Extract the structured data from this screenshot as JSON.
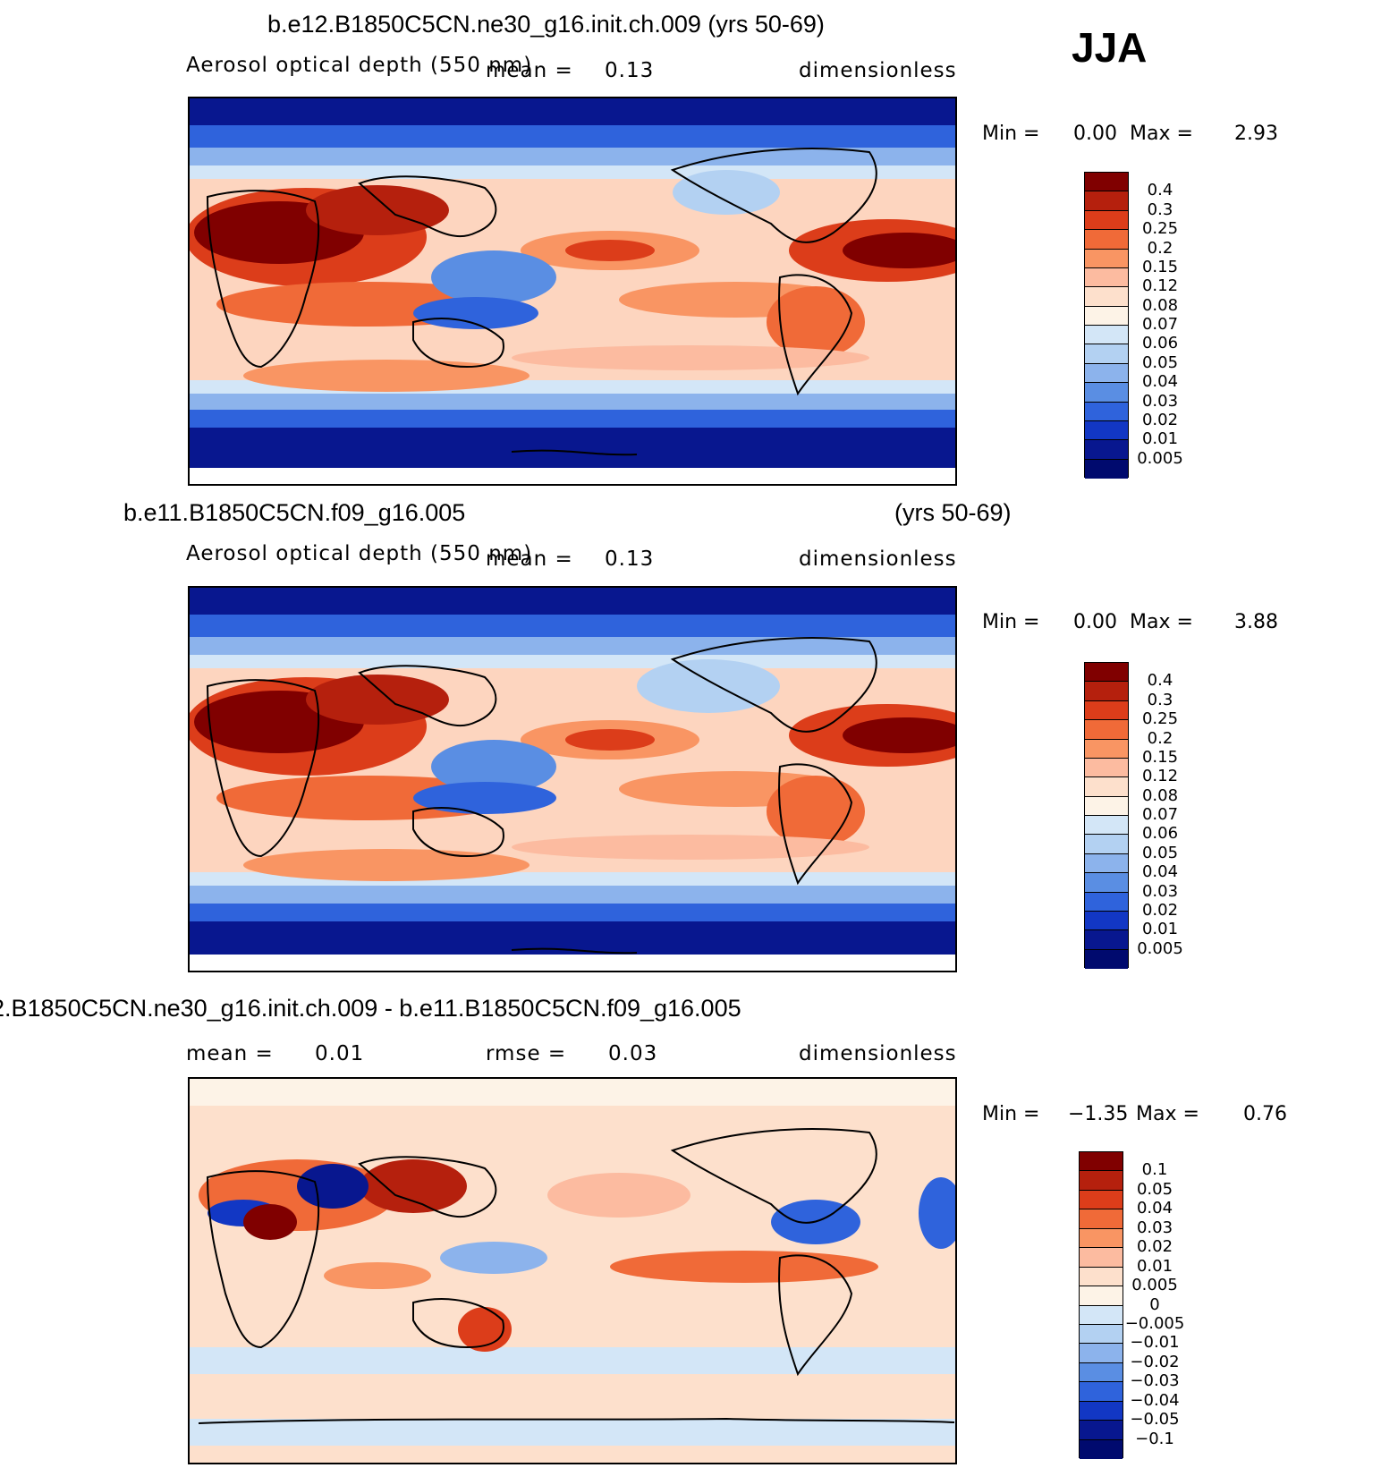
{
  "season": "JJA",
  "panels": [
    {
      "title": "b.e12.B1850C5CN.ne30_g16.init.ch.009 (yrs 50-69)",
      "variable": "Aerosol optical depth (550 nm)",
      "mean_label": "mean =",
      "mean_value": "0.13",
      "units": "dimensionless",
      "min_label": "Min =",
      "min_value": "0.00",
      "max_label": "Max =",
      "max_value": "2.93",
      "colorbar_labels": [
        "0.4",
        "0.3",
        "0.25",
        "0.2",
        "0.15",
        "0.12",
        "0.08",
        "0.07",
        "0.06",
        "0.05",
        "0.04",
        "0.03",
        "0.02",
        "0.01",
        "0.005"
      ]
    },
    {
      "title": "b.e11.B1850C5CN.f09_g16.005",
      "title_right": "(yrs 50-69)",
      "variable": "Aerosol optical depth (550 nm)",
      "mean_label": "mean =",
      "mean_value": "0.13",
      "units": "dimensionless",
      "min_label": "Min =",
      "min_value": "0.00",
      "max_label": "Max =",
      "max_value": "3.88",
      "colorbar_labels": [
        "0.4",
        "0.3",
        "0.25",
        "0.2",
        "0.15",
        "0.12",
        "0.08",
        "0.07",
        "0.06",
        "0.05",
        "0.04",
        "0.03",
        "0.02",
        "0.01",
        "0.005"
      ]
    },
    {
      "title": "2.B1850C5CN.ne30_g16.init.ch.009 - b.e11.B1850C5CN.f09_g16.005",
      "mean_label": "mean =",
      "mean_value": "0.01",
      "rmse_label": "rmse =",
      "rmse_value": "0.03",
      "units": "dimensionless",
      "min_label": "Min =",
      "min_value": "−1.35",
      "max_label": "Max =",
      "max_value": "0.76",
      "colorbar_labels": [
        "0.1",
        "0.05",
        "0.04",
        "0.03",
        "0.02",
        "0.01",
        "0.005",
        "0",
        "−0.005",
        "−0.01",
        "−0.02",
        "−0.03",
        "−0.04",
        "−0.05",
        "−0.1"
      ]
    }
  ],
  "colors": {
    "seq": [
      "#800000",
      "#b5200d",
      "#dc3d1a",
      "#f06a38",
      "#f99563",
      "#fcbba0",
      "#fde0cc",
      "#fdf3e7",
      "#d3e6f7",
      "#b3d1f2",
      "#8cb3ec",
      "#5a8ee3",
      "#2f63dc",
      "#1237c4",
      "#08178f",
      "#000a6e"
    ],
    "div": [
      "#800000",
      "#b5200d",
      "#dc3d1a",
      "#f06a38",
      "#f99563",
      "#fcbba0",
      "#fde0cc",
      "#fdf3e7",
      "#d3e6f7",
      "#b3d1f2",
      "#8cb3ec",
      "#5a8ee3",
      "#2f63dc",
      "#1237c4",
      "#08178f",
      "#000a6e"
    ],
    "land_outline": "#000000"
  }
}
